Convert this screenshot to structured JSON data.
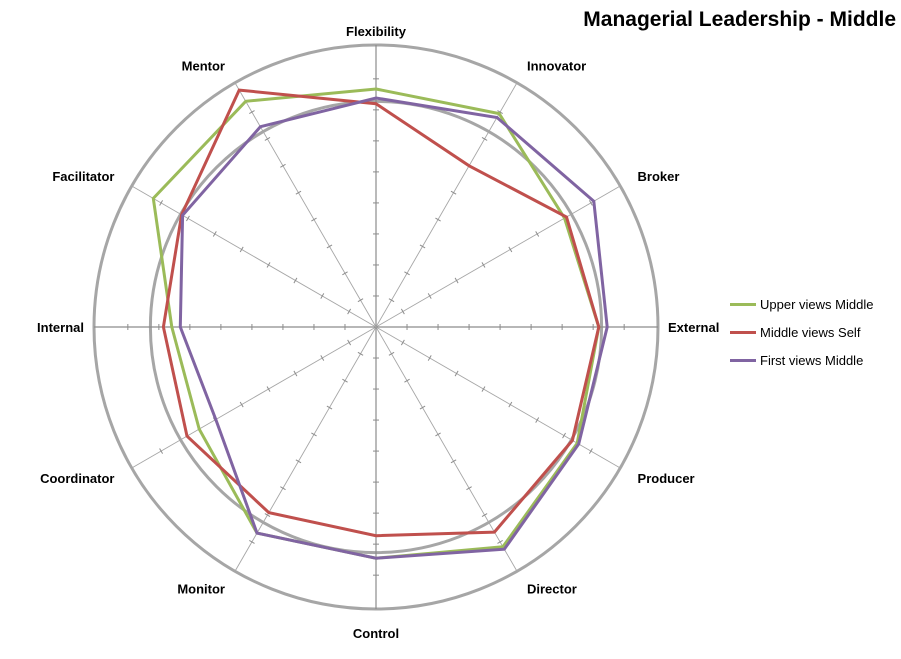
{
  "chart_data": {
    "type": "radar",
    "title": "Managerial Leadership - Middle",
    "categories": [
      "Flexibility",
      "Innovator",
      "Broker",
      "External",
      "Producer",
      "Director",
      "Control",
      "Monitor",
      "Coordinator",
      "Internal",
      "Facilitator",
      "Mentor"
    ],
    "axis_max": 5,
    "rings": [
      4,
      5
    ],
    "axis_minor_ticks": 8,
    "series": [
      {
        "name": "Upper views Middle",
        "color": "#9bbb59",
        "values": [
          4.22,
          4.37,
          3.86,
          3.95,
          4.12,
          4.5,
          4.1,
          4.22,
          3.62,
          3.62,
          4.56,
          4.62
        ]
      },
      {
        "name": "Middle views Self",
        "color": "#c0504d",
        "values": [
          3.96,
          3.3,
          3.9,
          3.95,
          4.02,
          4.2,
          3.7,
          3.8,
          3.87,
          3.77,
          3.98,
          4.85
        ]
      },
      {
        "name": "First views Middle",
        "color": "#8064a2",
        "values": [
          4.06,
          4.29,
          4.46,
          4.1,
          4.15,
          4.55,
          4.1,
          4.22,
          3.28,
          3.47,
          3.96,
          4.1
        ]
      }
    ],
    "legend_position": "right"
  }
}
